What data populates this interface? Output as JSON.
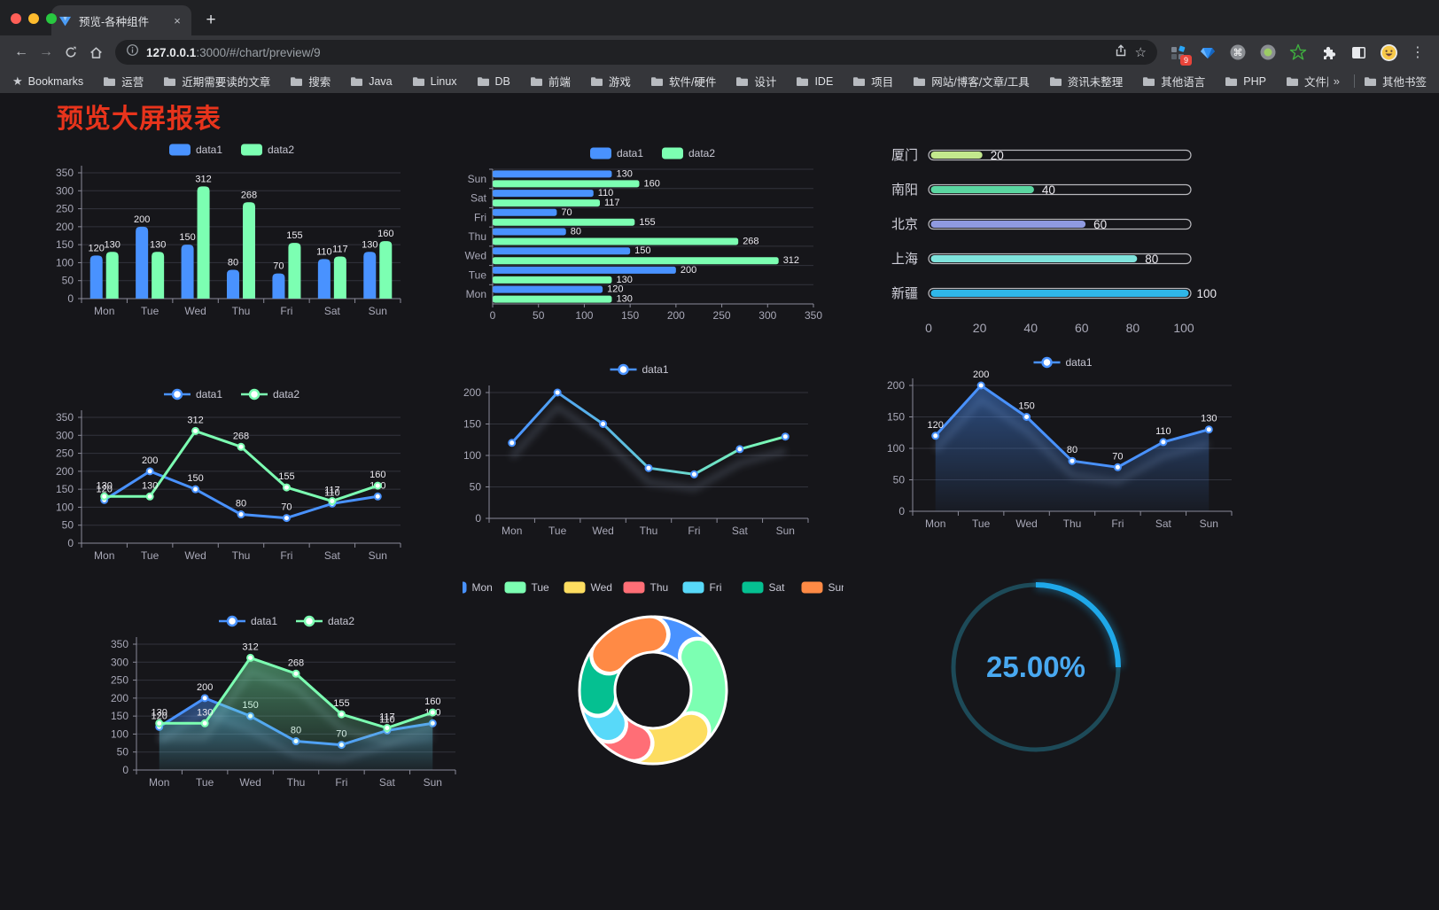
{
  "browser": {
    "traffic_lights": {
      "red": "#ff5f57",
      "yellow": "#febc2e",
      "green": "#28c840"
    },
    "tab": {
      "title": "预览-各种组件",
      "close_glyph": "×",
      "new_tab_glyph": "+"
    },
    "urlbar": {
      "host": "127.0.0.1",
      "rest": ":3000/#/chart/preview/9"
    },
    "extensions": {
      "badge": "9",
      "badge_color": "#e8443a"
    },
    "menu_glyph": "⋮"
  },
  "bookmarks": {
    "star_label": "Bookmarks",
    "folders": [
      "运营",
      "近期需要读的文章",
      "搜索",
      "Java",
      "Linux",
      "DB",
      "前端",
      "游戏",
      "软件/硬件",
      "设计",
      "IDE",
      "项目",
      "网站/博客/文章/工具",
      "资讯未整理",
      "其他语言",
      "PHP",
      "文件服务器"
    ],
    "overflow_glyph": "»",
    "other_label": "其他书签"
  },
  "page": {
    "title": "预览大屏报表",
    "title_color": "#e8341c"
  },
  "chart_data": [
    {
      "id": "c1",
      "type": "bar",
      "legend_position": "top",
      "categories": [
        "Mon",
        "Tue",
        "Wed",
        "Thu",
        "Fri",
        "Sat",
        "Sun"
      ],
      "series": [
        {
          "name": "data1",
          "color": "#4992ff",
          "values": [
            120,
            200,
            150,
            80,
            70,
            110,
            130
          ]
        },
        {
          "name": "data2",
          "color": "#7cffb2",
          "values": [
            130,
            130,
            312,
            268,
            155,
            117,
            160
          ]
        }
      ],
      "ylim": [
        0,
        350
      ],
      "yticks": [
        0,
        50,
        100,
        150,
        200,
        250,
        300,
        350
      ],
      "value_labels": true,
      "grid": true
    },
    {
      "id": "c2",
      "type": "hbar",
      "legend_position": "top",
      "categories": [
        "Sun",
        "Sat",
        "Fri",
        "Thu",
        "Wed",
        "Tue",
        "Mon"
      ],
      "series": [
        {
          "name": "data1",
          "color": "#4992ff",
          "values": [
            130,
            110,
            70,
            80,
            150,
            200,
            120
          ]
        },
        {
          "name": "data2",
          "color": "#7cffb2",
          "values": [
            160,
            117,
            155,
            268,
            312,
            130,
            130
          ]
        }
      ],
      "xlim": [
        0,
        350
      ],
      "xticks": [
        0,
        50,
        100,
        150,
        200,
        250,
        300,
        350
      ],
      "value_labels": true,
      "grid": true
    },
    {
      "id": "c3",
      "type": "progress",
      "items": [
        {
          "label": "厦门",
          "value": 20,
          "color": "#c3e88d"
        },
        {
          "label": "南阳",
          "value": 40,
          "color": "#5bd6a1"
        },
        {
          "label": "北京",
          "value": 60,
          "color": "#8f9ae0"
        },
        {
          "label": "上海",
          "value": 80,
          "color": "#7fe3dc"
        },
        {
          "label": "新疆",
          "value": 100,
          "color": "#2fb6e8"
        }
      ],
      "max": 100,
      "xticks": [
        0,
        20,
        40,
        60,
        80,
        100
      ]
    },
    {
      "id": "c4",
      "type": "line",
      "legend_position": "top",
      "categories": [
        "Mon",
        "Tue",
        "Wed",
        "Thu",
        "Fri",
        "Sat",
        "Sun"
      ],
      "series": [
        {
          "name": "data1",
          "color": "#4992ff",
          "values": [
            120,
            200,
            150,
            80,
            70,
            110,
            130
          ]
        },
        {
          "name": "data2",
          "color": "#7cffb2",
          "values": [
            130,
            130,
            312,
            268,
            155,
            117,
            160
          ]
        }
      ],
      "ylim": [
        0,
        350
      ],
      "yticks": [
        0,
        50,
        100,
        150,
        200,
        250,
        300,
        350
      ],
      "value_labels": true,
      "grid": true
    },
    {
      "id": "c5",
      "type": "line",
      "legend_position": "top",
      "categories": [
        "Mon",
        "Tue",
        "Wed",
        "Thu",
        "Fri",
        "Sat",
        "Sun"
      ],
      "series": [
        {
          "name": "data1",
          "gradient": [
            "#4992ff",
            "#7cffb2"
          ],
          "color": "#4992ff",
          "values": [
            120,
            200,
            150,
            80,
            70,
            110,
            130
          ]
        }
      ],
      "ylim": [
        0,
        200
      ],
      "yticks": [
        0,
        50,
        100,
        150,
        200
      ],
      "value_labels": false,
      "shadow": true,
      "grid": true
    },
    {
      "id": "c6",
      "type": "line",
      "legend_position": "top",
      "categories": [
        "Mon",
        "Tue",
        "Wed",
        "Thu",
        "Fri",
        "Sat",
        "Sun"
      ],
      "series": [
        {
          "name": "data1",
          "color": "#4992ff",
          "values": [
            120,
            200,
            150,
            80,
            70,
            110,
            130
          ],
          "area": true
        }
      ],
      "ylim": [
        0,
        200
      ],
      "yticks": [
        0,
        50,
        100,
        150,
        200
      ],
      "value_labels": true,
      "shadow": true,
      "grid": true
    },
    {
      "id": "c7",
      "type": "line",
      "legend_position": "top",
      "categories": [
        "Mon",
        "Tue",
        "Wed",
        "Thu",
        "Fri",
        "Sat",
        "Sun"
      ],
      "series": [
        {
          "name": "data1",
          "color": "#4992ff",
          "values": [
            120,
            200,
            150,
            80,
            70,
            110,
            130
          ],
          "area": true
        },
        {
          "name": "data2",
          "color": "#7cffb2",
          "values": [
            130,
            130,
            312,
            268,
            155,
            117,
            160
          ],
          "area": true
        }
      ],
      "ylim": [
        0,
        350
      ],
      "yticks": [
        0,
        50,
        100,
        150,
        200,
        250,
        300,
        350
      ],
      "value_labels": true,
      "shadow": true,
      "grid": true
    },
    {
      "id": "c8",
      "type": "pie",
      "legend_position": "top",
      "items": [
        {
          "label": "Mon",
          "value": 120,
          "color": "#4992ff"
        },
        {
          "label": "Tue",
          "value": 200,
          "color": "#7cffb2"
        },
        {
          "label": "Wed",
          "value": 150,
          "color": "#fddd60"
        },
        {
          "label": "Thu",
          "value": 80,
          "color": "#ff6e76"
        },
        {
          "label": "Fri",
          "value": 70,
          "color": "#58d9f9"
        },
        {
          "label": "Sat",
          "value": 110,
          "color": "#05c091"
        },
        {
          "label": "Sun",
          "value": 130,
          "color": "#ff8a45"
        }
      ]
    },
    {
      "id": "c9",
      "type": "gauge",
      "value": 25,
      "max": 100,
      "label": "25.00%",
      "arc_color": "#1fa8e9",
      "track_color": "#1d4a58",
      "text_color": "#49a9f1"
    }
  ]
}
